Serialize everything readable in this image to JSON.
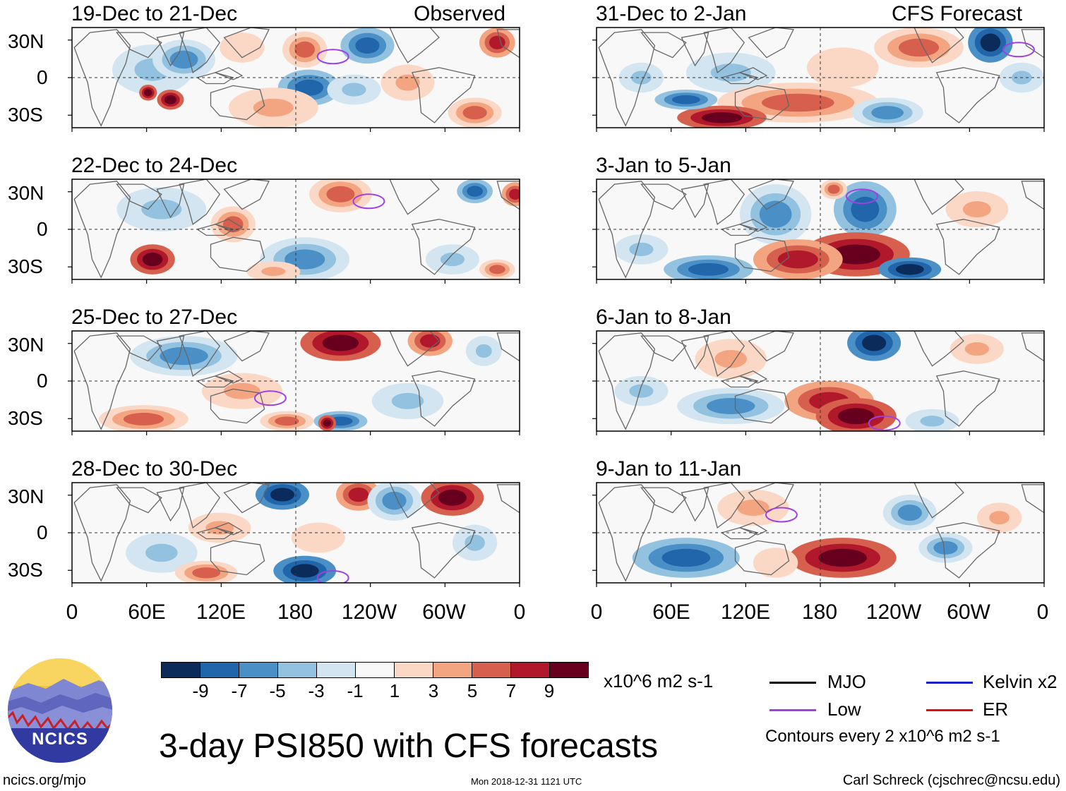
{
  "figure_title": "3-day PSI850 with CFS forecasts",
  "observed_label": "Observed",
  "forecast_label": "CFS Forecast",
  "colorbar": {
    "units": "x10^6 m2 s-1",
    "labels": [
      "-9",
      "-7",
      "-5",
      "-3",
      "-1",
      "1",
      "3",
      "5",
      "7",
      "9"
    ],
    "colors": [
      "#0b2c5a",
      "#2165ab",
      "#4a90c6",
      "#92c2df",
      "#d2e5f0",
      "#f8f8f8",
      "#fbd8c5",
      "#f3a481",
      "#d6604d",
      "#b2182b",
      "#67001f"
    ]
  },
  "legend": {
    "items": [
      {
        "label": "MJO",
        "color": "#000000"
      },
      {
        "label": "Low",
        "color": "#a040e0"
      },
      {
        "label": "Kelvin x2",
        "color": "#1c1ccc"
      },
      {
        "label": "ER",
        "color": "#e01010"
      }
    ],
    "contour_note": "Contours every 2 x10^6 m2 s-1"
  },
  "axes": {
    "lat_labels": [
      "30N",
      "0",
      "30S"
    ],
    "lon_labels": [
      "0",
      "60E",
      "120E",
      "180",
      "120W",
      "60W",
      "0"
    ]
  },
  "panels": [
    {
      "title": "19-Dec to 21-Dec",
      "column": "observed"
    },
    {
      "title": "22-Dec to 24-Dec",
      "column": "observed"
    },
    {
      "title": "25-Dec to 27-Dec",
      "column": "observed"
    },
    {
      "title": "28-Dec to 30-Dec",
      "column": "observed"
    },
    {
      "title": "31-Dec to 2-Jan",
      "column": "forecast"
    },
    {
      "title": "3-Jan to 5-Jan",
      "column": "forecast"
    },
    {
      "title": "6-Jan to 8-Jan",
      "column": "forecast"
    },
    {
      "title": "9-Jan to 11-Jan",
      "column": "forecast"
    }
  ],
  "chart_data": {
    "type": "heatmap",
    "variable": "PSI850 anomaly",
    "lat_range": [
      -40,
      40
    ],
    "lon_range": [
      0,
      360
    ],
    "color_levels": [
      -9,
      -7,
      -5,
      -3,
      -1,
      1,
      3,
      5,
      7,
      9
    ]
  },
  "logo_text": "NCICS",
  "footer": {
    "url": "ncics.org/mjo",
    "timestamp": "Mon 2018-12-31 1121 UTC",
    "author": "Carl Schreck (cjschrec@ncsu.edu)"
  }
}
